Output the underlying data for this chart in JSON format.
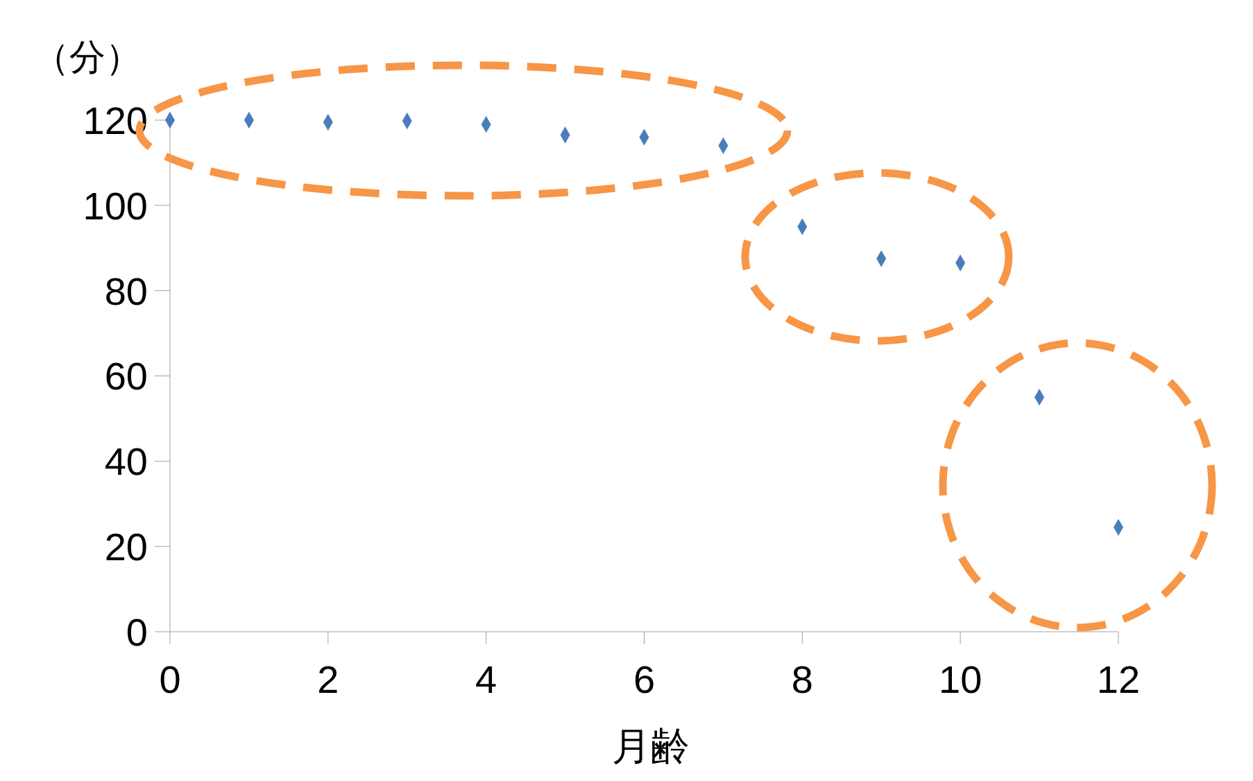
{
  "chart_data": {
    "type": "scatter",
    "xlabel": "月齢",
    "ylabel": "（分）",
    "x": [
      0,
      1,
      2,
      3,
      4,
      5,
      6,
      7,
      8,
      9,
      10,
      11,
      12
    ],
    "series": [
      {
        "color": "#4a7ebb",
        "values": [
          120,
          120,
          119.5,
          119.8,
          119,
          116.5,
          116,
          114,
          95,
          87.5,
          86.5,
          55,
          24.5
        ]
      }
    ],
    "xlim": [
      0,
      12
    ],
    "xticks": [
      0,
      2,
      4,
      6,
      8,
      10,
      12
    ],
    "ylim": [
      0,
      120
    ],
    "yticks": [
      0,
      20,
      40,
      60,
      80,
      100,
      120
    ],
    "marker": "diamond",
    "grid": false,
    "legend": false
  }
}
